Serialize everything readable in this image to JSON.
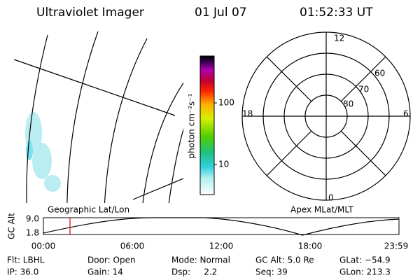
{
  "header": {
    "title": "Ultraviolet Imager",
    "date": "01 Jul 07",
    "time": "01:52:33 UT"
  },
  "colorbar": {
    "label": "photon cm⁻²s⁻¹",
    "ticks": [
      "100",
      "10"
    ]
  },
  "polar": {
    "mlt_labels": [
      "12",
      "18",
      "6",
      "0"
    ],
    "lat_labels": [
      "60",
      "70",
      "80"
    ]
  },
  "timeline": {
    "left_label": "Geographic Lat/Lon",
    "right_label": "Apex MLat/MLT",
    "y_label": "GC Alt",
    "y_ticks": [
      "9.0",
      "1.8"
    ],
    "x_ticks": [
      "00:00",
      "06:00",
      "12:00",
      "18:00",
      "23:59"
    ]
  },
  "info": {
    "rows": [
      [
        "Flt: LBHL",
        "Door: Open",
        "Mode: Normal",
        "GC Alt: 5.0 Re",
        "GLat: −54.9"
      ],
      [
        "IP: 36.0",
        "Gain: 14",
        "Dsp:     2.2",
        "Seq: 39",
        "GLon: 213.3"
      ]
    ]
  }
}
